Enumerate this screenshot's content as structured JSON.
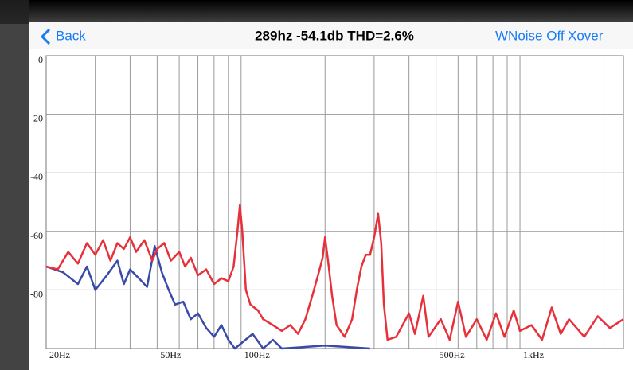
{
  "nav": {
    "back": "Back",
    "title": "289hz -54.1db THD=2.6%",
    "wnoise": "WNoise Off",
    "xover": "Xover"
  },
  "chart_data": {
    "type": "line",
    "log_x": true,
    "grid": true,
    "xlim": [
      20,
      2350
    ],
    "ylim": [
      -100,
      0
    ],
    "yticks": [
      0,
      -20,
      -40,
      -60,
      -80
    ],
    "xticks": [
      {
        "value": 20,
        "label": "20Hz"
      },
      {
        "value": 50,
        "label": "50Hz"
      },
      {
        "value": 100,
        "label": "100Hz"
      },
      {
        "value": 500,
        "label": "500Hz"
      },
      {
        "value": 1000,
        "label": "1kHz"
      }
    ],
    "xminor_ticks": [
      30,
      40,
      60,
      70,
      80,
      90,
      200,
      300,
      400,
      600,
      700,
      800,
      900,
      2000
    ],
    "series": [
      {
        "color": "#e8303a",
        "x": [
          20,
          22,
          24,
          26,
          28,
          30,
          32,
          34,
          36,
          38,
          40,
          42,
          45,
          48,
          50,
          53,
          56,
          60,
          63,
          66,
          70,
          75,
          80,
          85,
          90,
          94,
          97,
          99,
          101,
          104,
          108,
          115,
          120,
          130,
          140,
          150,
          160,
          170,
          180,
          190,
          196,
          200,
          205,
          212,
          220,
          235,
          250,
          260,
          270,
          280,
          290,
          300,
          310,
          318,
          325,
          335,
          360,
          400,
          420,
          450,
          470,
          520,
          560,
          600,
          640,
          700,
          760,
          820,
          880,
          950,
          1000,
          1100,
          1200,
          1300,
          1400,
          1500,
          1700,
          1900,
          2100,
          2350
        ],
        "values": [
          -72,
          -73,
          -67,
          -71,
          -64,
          -68,
          -63,
          -70,
          -64,
          -66,
          -62,
          -67,
          -63,
          -70,
          -66,
          -64,
          -70,
          -67,
          -72,
          -69,
          -75,
          -73,
          -78,
          -76,
          -77,
          -72,
          -60,
          -51,
          -60,
          -80,
          -85,
          -87,
          -90,
          -92,
          -94,
          -92,
          -95,
          -90,
          -82,
          -74,
          -69,
          -62,
          -70,
          -82,
          -92,
          -96,
          -90,
          -80,
          -72,
          -68,
          -68,
          -62,
          -54,
          -64,
          -85,
          -97,
          -96,
          -88,
          -95,
          -82,
          -96,
          -90,
          -97,
          -84,
          -96,
          -90,
          -97,
          -88,
          -96,
          -87,
          -94,
          -92,
          -97,
          -86,
          -95,
          -90,
          -96,
          -89,
          -93,
          -90
        ]
      },
      {
        "color": "#3a4aa8",
        "x": [
          20,
          23,
          26,
          28,
          30,
          33,
          36,
          38,
          40,
          43,
          46,
          49,
          52,
          55,
          58,
          62,
          66,
          70,
          75,
          80,
          85,
          90,
          95,
          110,
          120,
          130,
          140,
          200,
          290
        ],
        "values": [
          -72,
          -74,
          -78,
          -72,
          -80,
          -75,
          -70,
          -78,
          -73,
          -76,
          -79,
          -65,
          -74,
          -80,
          -85,
          -84,
          -90,
          -88,
          -93,
          -96,
          -92,
          -97,
          -100,
          -95,
          -100,
          -97,
          -100,
          -99,
          -100
        ]
      }
    ]
  }
}
